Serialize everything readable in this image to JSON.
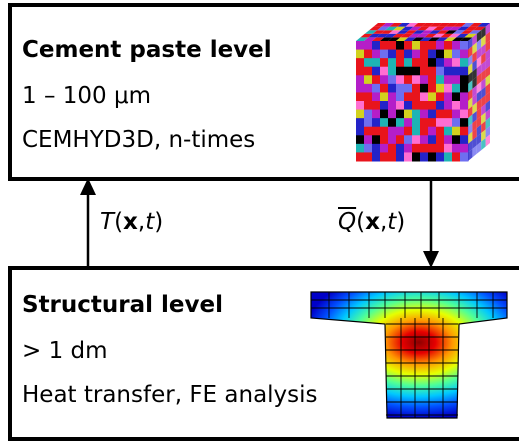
{
  "top_box": {
    "title": "Cement paste level",
    "line1": "1 – 100 μm",
    "line2": "CEMHYD3D, n-times"
  },
  "bottom_box": {
    "title": "Structural level",
    "line1": "> 1 dm",
    "line2": "Heat transfer, FE analysis"
  },
  "arrows": {
    "up_label": {
      "var": "T",
      "open": "(",
      "bold": "x",
      "sep": ",",
      "var2": "t",
      "close": ")"
    },
    "down_label": {
      "var": "Q",
      "open": "(",
      "bold": "x",
      "sep": ",",
      "var2": "t",
      "close": ")"
    }
  },
  "icons": {
    "microstructure": "voxel-cube-image",
    "fe_mesh": "t-beam-temperature-field"
  },
  "colors": {
    "border": "#000000",
    "cube_colors": [
      "#e8141c",
      "#2323c8",
      "#b41ec8",
      "#d2d21e",
      "#1eb4b4",
      "#000000",
      "#ff6ed2",
      "#6e6ef0"
    ],
    "heat_scale": [
      "#0000c8",
      "#0050ff",
      "#00c8ff",
      "#50ff96",
      "#e6ff00",
      "#ff9600",
      "#e60000",
      "#8c0000"
    ]
  }
}
